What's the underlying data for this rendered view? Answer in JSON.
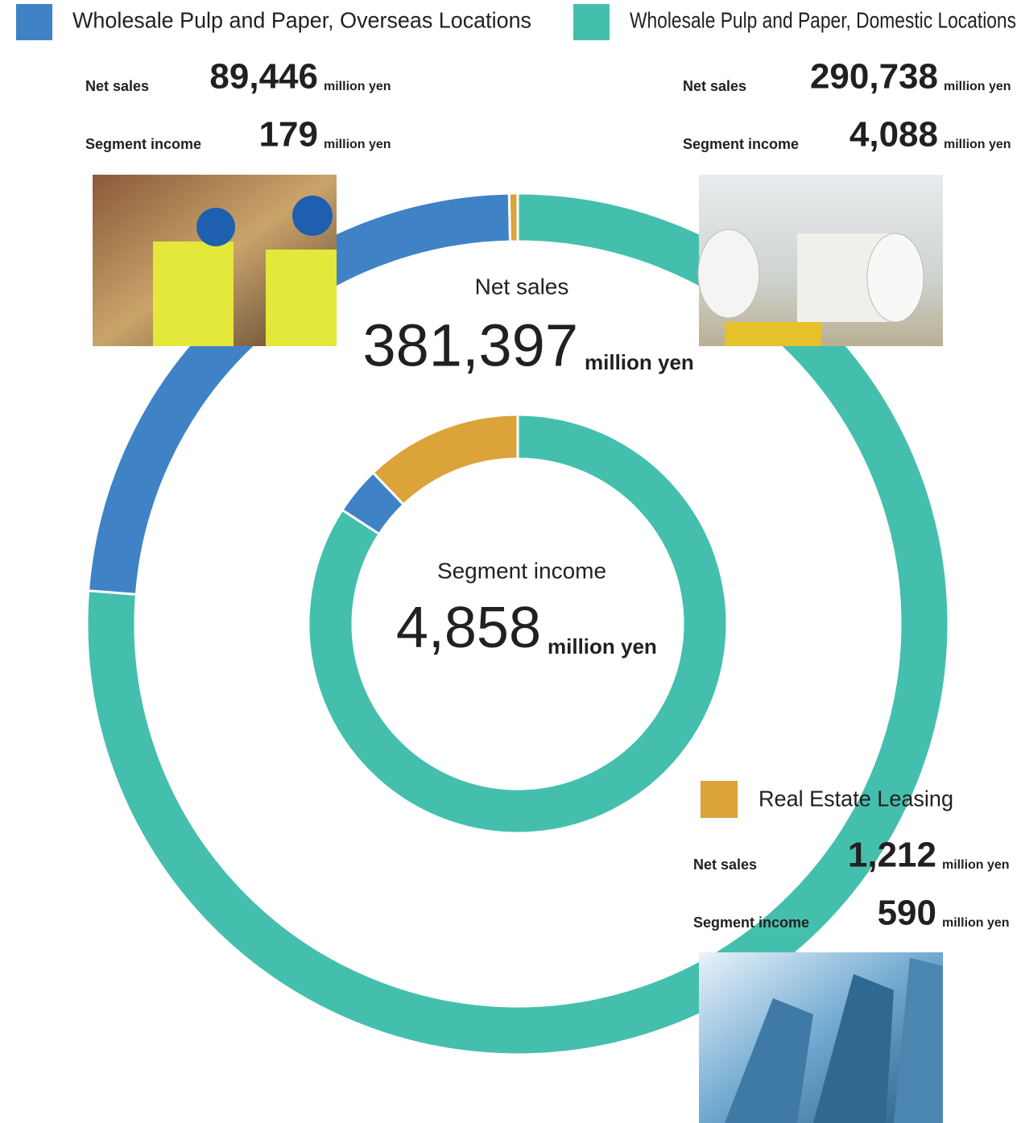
{
  "chart_data": {
    "type": "donut",
    "unit": "million yen",
    "series": [
      {
        "name": "Wholesale Pulp and Paper, Domestic Locations",
        "color": "#45bfad"
      },
      {
        "name": "Wholesale Pulp and Paper, Overseas Locations",
        "color": "#3f83c6"
      },
      {
        "name": "Real Estate Leasing",
        "color": "#dca33a"
      }
    ],
    "rings": [
      {
        "name": "Net sales",
        "total": 381397,
        "total_label": "381,397",
        "values": [
          290738,
          89446,
          1212
        ],
        "value_labels": [
          "290,738",
          "89,446",
          "1,212"
        ]
      },
      {
        "name": "Segment income",
        "total": 4858,
        "total_label": "4,858",
        "values": [
          4088,
          179,
          590
        ],
        "value_labels": [
          "4,088",
          "179",
          "590"
        ]
      }
    ]
  }
}
